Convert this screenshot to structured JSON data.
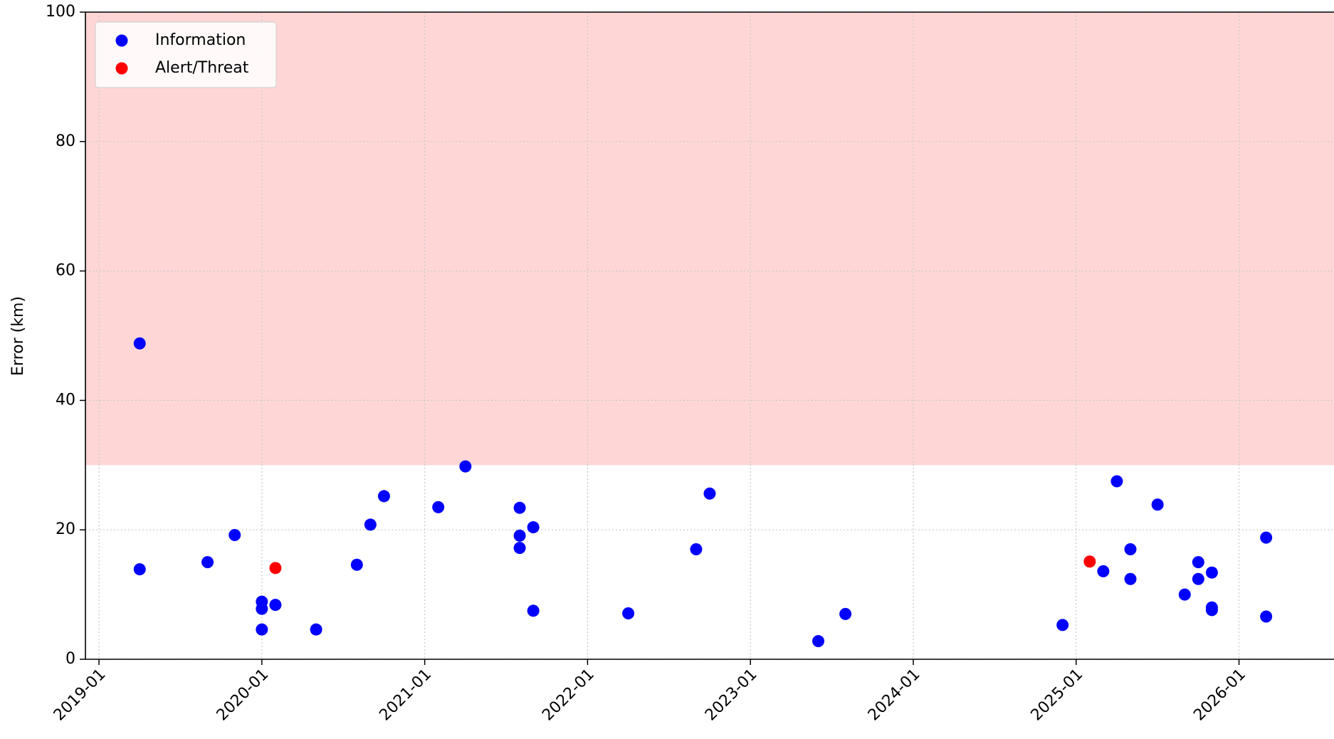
{
  "chart_data": {
    "type": "scatter",
    "y_label": "Error (km)",
    "xlim": [
      "2018-12",
      "2026-08"
    ],
    "xticks": [
      "2019-01",
      "2020-01",
      "2021-01",
      "2022-01",
      "2023-01",
      "2024-01",
      "2025-01",
      "2026-01"
    ],
    "ylim": [
      0,
      100
    ],
    "yticks": [
      0,
      20,
      40,
      60,
      80,
      100
    ],
    "grid": true,
    "legend": "upper-left",
    "bands": [
      {
        "from": 30,
        "to": 100,
        "color": "#ffd6d6"
      }
    ],
    "series": [
      {
        "name": "Information",
        "color": "#0000ff",
        "x": [
          "2019-04",
          "2019-04",
          "2019-09",
          "2019-11",
          "2020-01",
          "2020-01",
          "2020-02",
          "2020-01",
          "2020-05",
          "2020-08",
          "2020-09",
          "2020-10",
          "2021-02",
          "2021-04",
          "2021-08",
          "2021-08",
          "2021-09",
          "2021-08",
          "2021-09",
          "2022-04",
          "2022-09",
          "2022-10",
          "2023-06",
          "2023-08",
          "2024-12",
          "2025-03",
          "2025-04",
          "2025-05",
          "2025-05",
          "2025-07",
          "2025-09",
          "2025-10",
          "2025-10",
          "2025-11",
          "2025-11",
          "2025-11",
          "2026-03",
          "2026-03"
        ],
        "values": [
          48.8,
          13.9,
          15.0,
          19.2,
          8.9,
          7.8,
          8.4,
          4.6,
          4.6,
          14.6,
          20.8,
          25.2,
          23.5,
          29.8,
          23.4,
          19.1,
          20.4,
          17.2,
          7.5,
          7.1,
          17.0,
          25.6,
          2.8,
          7.0,
          5.3,
          13.6,
          27.5,
          17.0,
          12.4,
          23.9,
          10.0,
          15.0,
          12.4,
          13.4,
          8.0,
          7.6,
          18.8,
          6.6
        ]
      },
      {
        "name": "Alert/Threat",
        "color": "#ff0000",
        "x": [
          "2020-02",
          "2025-02"
        ],
        "values": [
          14.1,
          15.1
        ]
      }
    ]
  }
}
